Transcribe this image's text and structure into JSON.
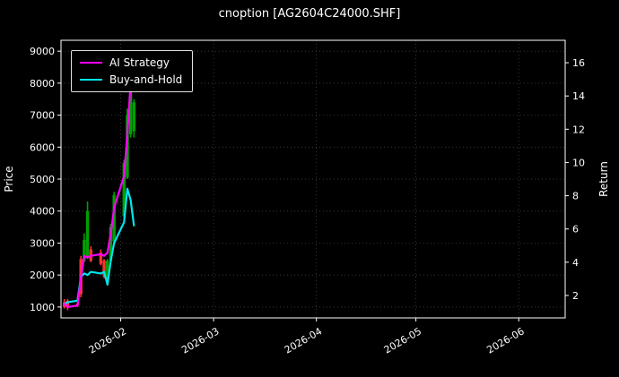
{
  "title": "cnoption [AG2604C24000.SHF]",
  "colors": {
    "background": "#000000",
    "text": "#ffffff",
    "ai_strategy": "#ff00ff",
    "buy_and_hold": "#00e5ee",
    "candle_up": "#00a000",
    "candle_down": "#ff3333",
    "grid": "#4a4a4a",
    "spine": "#ffffff"
  },
  "legend": {
    "items": [
      {
        "label": "AI Strategy",
        "color": "#ff00ff"
      },
      {
        "label": "Buy-and-Hold",
        "color": "#00e5ee"
      }
    ]
  },
  "chart_data": {
    "type": "line",
    "title": "cnoption [AG2604C24000.SHF]",
    "x_domain": [
      "2026-01-14",
      "2026-06-15"
    ],
    "x_ticks": [
      {
        "date": "2026-02-01",
        "label": "2026-02"
      },
      {
        "date": "2026-03-01",
        "label": "2026-03"
      },
      {
        "date": "2026-04-01",
        "label": "2026-04"
      },
      {
        "date": "2026-05-01",
        "label": "2026-05"
      },
      {
        "date": "2026-06-01",
        "label": "2026-06"
      }
    ],
    "price_axis": {
      "label": "Price",
      "domain": [
        660,
        9340
      ],
      "ticks": [
        1000,
        2000,
        3000,
        4000,
        5000,
        6000,
        7000,
        8000,
        9000
      ]
    },
    "return_axis": {
      "label": "Return",
      "domain": [
        0.65,
        17.35
      ],
      "ticks": [
        2,
        4,
        6,
        8,
        10,
        12,
        14,
        16
      ]
    },
    "series": [
      {
        "name": "AI Strategy",
        "color": "#ff00ff",
        "axis": "price",
        "x": [
          "2026-01-15",
          "2026-01-16",
          "2026-01-19",
          "2026-01-20",
          "2026-01-21",
          "2026-01-22",
          "2026-01-23",
          "2026-01-26",
          "2026-01-27",
          "2026-01-28",
          "2026-01-29",
          "2026-01-30",
          "2026-02-02",
          "2026-02-03",
          "2026-02-04"
        ],
        "y": [
          1100,
          1000,
          1050,
          1900,
          2600,
          2550,
          2600,
          2650,
          2600,
          2700,
          3300,
          4100,
          5100,
          6400,
          8000
        ]
      },
      {
        "name": "Buy-and-Hold",
        "color": "#00e5ee",
        "axis": "price",
        "x": [
          "2026-01-15",
          "2026-01-16",
          "2026-01-19",
          "2026-01-20",
          "2026-01-21",
          "2026-01-22",
          "2026-01-23",
          "2026-01-26",
          "2026-01-27",
          "2026-01-28",
          "2026-01-29",
          "2026-01-30",
          "2026-02-02",
          "2026-02-03",
          "2026-02-04",
          "2026-02-05"
        ],
        "y": [
          1100,
          1150,
          1200,
          1950,
          2050,
          2000,
          2100,
          2050,
          2100,
          1700,
          2450,
          3000,
          3650,
          4700,
          4350,
          3550
        ]
      }
    ],
    "candles": [
      {
        "date": "2026-01-15",
        "open": 1150,
        "high": 1250,
        "low": 950,
        "close": 1000
      },
      {
        "date": "2026-01-16",
        "open": 1200,
        "high": 1250,
        "low": 900,
        "close": 1000
      },
      {
        "date": "2026-01-19",
        "open": 1100,
        "high": 1300,
        "low": 1000,
        "close": 1050
      },
      {
        "date": "2026-01-20",
        "open": 2500,
        "high": 2600,
        "low": 1300,
        "close": 1400
      },
      {
        "date": "2026-01-21",
        "open": 2450,
        "high": 3300,
        "low": 2400,
        "close": 3100
      },
      {
        "date": "2026-01-22",
        "open": 2550,
        "high": 4300,
        "low": 2500,
        "close": 4000
      },
      {
        "date": "2026-01-23",
        "open": 2800,
        "high": 2900,
        "low": 2400,
        "close": 2450
      },
      {
        "date": "2026-01-26",
        "open": 2700,
        "high": 2800,
        "low": 2300,
        "close": 2350
      },
      {
        "date": "2026-01-27",
        "open": 2450,
        "high": 2500,
        "low": 1900,
        "close": 1950
      },
      {
        "date": "2026-01-28",
        "open": 1750,
        "high": 2500,
        "low": 1700,
        "close": 2450
      },
      {
        "date": "2026-01-29",
        "open": 2450,
        "high": 3600,
        "low": 2400,
        "close": 3500
      },
      {
        "date": "2026-01-30",
        "open": 3050,
        "high": 4600,
        "low": 3000,
        "close": 4500
      },
      {
        "date": "2026-02-02",
        "open": 3850,
        "high": 5600,
        "low": 3800,
        "close": 5500
      },
      {
        "date": "2026-02-03",
        "open": 5050,
        "high": 7200,
        "low": 5000,
        "close": 7000
      },
      {
        "date": "2026-02-04",
        "open": 6400,
        "high": 8100,
        "low": 6300,
        "close": 8000
      },
      {
        "date": "2026-02-05",
        "open": 6500,
        "high": 7500,
        "low": 6300,
        "close": 7400
      }
    ],
    "grid": true,
    "legend_position": "upper-left"
  }
}
